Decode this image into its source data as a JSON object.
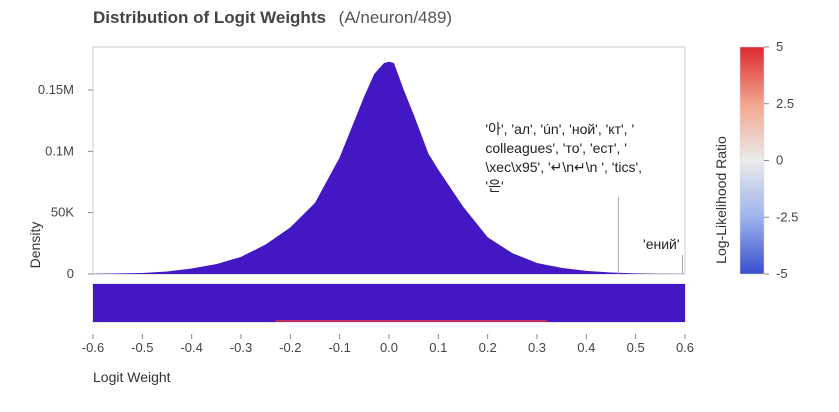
{
  "chart_data": {
    "type": "area",
    "title": "Distribution of Logit Weights",
    "subtitle": "(A/neuron/489)",
    "xlabel": "Logit Weight",
    "ylabel": "Density",
    "xlim": [
      -0.6,
      0.6
    ],
    "ylim": [
      0,
      185000
    ],
    "x_ticks": [
      -0.6,
      -0.5,
      -0.4,
      -0.3,
      -0.2,
      -0.1,
      0,
      0.1,
      0.2,
      0.3,
      0.4,
      0.5,
      0.6
    ],
    "x_tick_labels": [
      "-0.6",
      "-0.5",
      "-0.4",
      "-0.3",
      "-0.2",
      "-0.1",
      "0.0",
      "0.1",
      "0.2",
      "0.3",
      "0.4",
      "0.5",
      "0.6"
    ],
    "y_ticks": [
      0,
      50000,
      100000,
      150000
    ],
    "y_tick_labels": [
      "0",
      "50K",
      "0.1M",
      "0.15M"
    ],
    "grid": false,
    "series": [
      {
        "color": "#4318c4",
        "x": [
          -0.6,
          -0.5,
          -0.45,
          -0.4,
          -0.35,
          -0.3,
          -0.25,
          -0.2,
          -0.15,
          -0.1,
          -0.08,
          -0.05,
          -0.03,
          -0.01,
          0.0,
          0.01,
          0.03,
          0.05,
          0.08,
          0.1,
          0.15,
          0.2,
          0.25,
          0.3,
          0.35,
          0.4,
          0.45,
          0.5,
          0.55,
          0.6
        ],
        "y": [
          200,
          800,
          2000,
          4500,
          8000,
          14000,
          24000,
          38000,
          58000,
          95000,
          115000,
          145000,
          163000,
          172000,
          173000,
          172000,
          150000,
          130000,
          98000,
          85000,
          55000,
          30000,
          17000,
          9000,
          5000,
          2500,
          1200,
          500,
          200,
          100
        ]
      }
    ],
    "annotations": [
      {
        "x": 0.465,
        "lines": [
          "'아', 'ал', 'ún', 'ной', 'кт', '",
          "colleagues', 'то', 'ест', '",
          "\\xec\\x95', '↵\\n↵\\n ', 'tics',",
          "'은'"
        ]
      },
      {
        "x": 0.595,
        "lines": [
          "'ений'"
        ]
      }
    ],
    "strip": {
      "color": "#4318c4",
      "highlight_color": "#e8304a",
      "highlight_range": [
        -0.23,
        0.32
      ]
    },
    "colorbar": {
      "label": "Log-Likelihood Ratio",
      "range": [
        -5,
        5
      ],
      "ticks": [
        5,
        2.5,
        0,
        -2.5,
        -5
      ],
      "tick_labels": [
        "5",
        "2.5",
        "0",
        "-2.5",
        "-5"
      ],
      "colors": [
        "#dc2a32",
        "#f2a58d",
        "#ebebeb",
        "#9db3ec",
        "#3a4fcf"
      ]
    }
  }
}
